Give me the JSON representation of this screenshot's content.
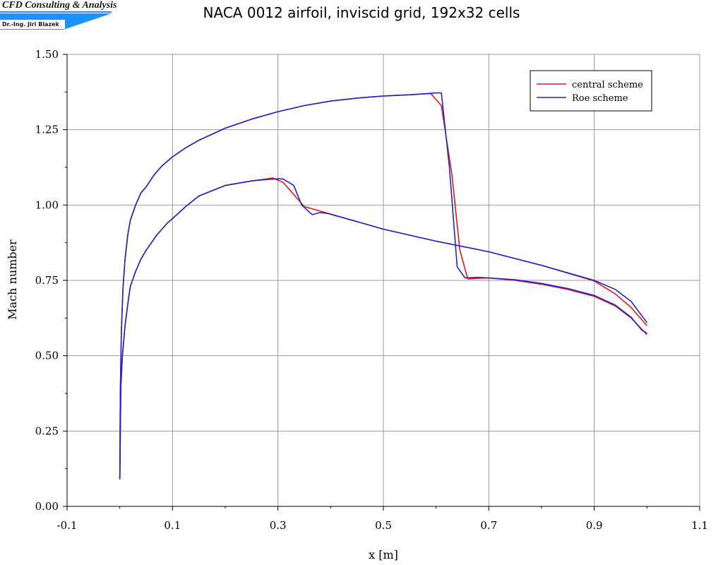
{
  "logo": {
    "line1": "CFD Consulting & Analysis",
    "line2": "Dr.-Ing. Jiri Blazek",
    "accent_color": "#1e90ff"
  },
  "chart_data": {
    "type": "line",
    "title": "NACA 0012 airfoil, inviscid grid, 192x32 cells",
    "xlabel": "x [m]",
    "ylabel": "Mach number",
    "xlim": [
      -0.1,
      1.1
    ],
    "ylim": [
      0.0,
      1.5
    ],
    "xticks": [
      -0.1,
      0.1,
      0.3,
      0.5,
      0.7,
      0.9,
      1.1
    ],
    "xtick_labels": [
      "-0.1",
      "0.1",
      "0.3",
      "0.5",
      "0.7",
      "0.9",
      "1.1"
    ],
    "yticks": [
      0.0,
      0.25,
      0.5,
      0.75,
      1.0,
      1.25,
      1.5
    ],
    "ytick_labels": [
      "0.00",
      "0.25",
      "0.50",
      "0.75",
      "1.00",
      "1.25",
      "1.50"
    ],
    "grid": true,
    "legend_position": "top-right",
    "series": [
      {
        "name": "central scheme",
        "color": "#e8141c",
        "segments": [
          {
            "x": [
              0.0,
              0.001,
              0.003,
              0.006,
              0.01,
              0.015,
              0.02,
              0.03,
              0.04,
              0.05,
              0.065,
              0.08,
              0.1,
              0.125,
              0.15,
              0.2,
              0.25,
              0.3,
              0.35,
              0.4,
              0.45,
              0.5,
              0.55,
              0.59,
              0.61,
              0.63,
              0.645,
              0.66
            ],
            "y": [
              0.09,
              0.38,
              0.58,
              0.72,
              0.82,
              0.9,
              0.95,
              1.0,
              1.04,
              1.06,
              1.1,
              1.13,
              1.16,
              1.19,
              1.215,
              1.255,
              1.285,
              1.31,
              1.33,
              1.345,
              1.355,
              1.362,
              1.366,
              1.37,
              1.33,
              1.1,
              0.85,
              0.755
            ]
          },
          {
            "x": [
              0.66,
              0.68,
              0.7,
              0.75,
              0.8,
              0.85,
              0.9,
              0.94,
              0.97,
              0.99,
              1.0
            ],
            "y": [
              0.755,
              0.757,
              0.758,
              0.75,
              0.737,
              0.72,
              0.697,
              0.665,
              0.625,
              0.588,
              0.57
            ]
          },
          {
            "x": [
              0.0,
              0.002,
              0.005,
              0.01,
              0.015,
              0.02,
              0.03,
              0.04,
              0.05,
              0.07,
              0.09,
              0.1,
              0.125,
              0.15,
              0.2,
              0.25,
              0.28,
              0.29,
              0.31,
              0.35,
              0.38,
              0.4,
              0.45,
              0.5,
              0.6,
              0.7,
              0.8,
              0.9,
              0.94,
              0.97,
              1.0
            ],
            "y": [
              0.09,
              0.4,
              0.5,
              0.6,
              0.67,
              0.73,
              0.78,
              0.82,
              0.85,
              0.9,
              0.94,
              0.955,
              0.995,
              1.03,
              1.065,
              1.08,
              1.087,
              1.09,
              1.075,
              0.995,
              0.98,
              0.97,
              0.945,
              0.92,
              0.88,
              0.845,
              0.8,
              0.748,
              0.705,
              0.66,
              0.6
            ]
          }
        ]
      },
      {
        "name": "Roe scheme",
        "color": "#2424cc",
        "segments": [
          {
            "x": [
              0.0,
              0.001,
              0.003,
              0.006,
              0.01,
              0.015,
              0.02,
              0.03,
              0.04,
              0.05,
              0.065,
              0.08,
              0.1,
              0.125,
              0.15,
              0.2,
              0.25,
              0.3,
              0.35,
              0.4,
              0.45,
              0.5,
              0.55,
              0.6,
              0.61,
              0.625,
              0.64,
              0.655
            ],
            "y": [
              0.09,
              0.38,
              0.58,
              0.72,
              0.82,
              0.9,
              0.95,
              1.0,
              1.04,
              1.06,
              1.1,
              1.13,
              1.16,
              1.19,
              1.215,
              1.255,
              1.285,
              1.31,
              1.33,
              1.345,
              1.355,
              1.362,
              1.366,
              1.372,
              1.372,
              1.13,
              0.795,
              0.758
            ]
          },
          {
            "x": [
              0.655,
              0.68,
              0.7,
              0.75,
              0.8,
              0.85,
              0.9,
              0.94,
              0.97,
              0.99,
              1.0
            ],
            "y": [
              0.758,
              0.76,
              0.758,
              0.752,
              0.74,
              0.723,
              0.7,
              0.668,
              0.628,
              0.585,
              0.575
            ]
          },
          {
            "x": [
              0.0,
              0.002,
              0.005,
              0.01,
              0.015,
              0.02,
              0.03,
              0.04,
              0.05,
              0.07,
              0.09,
              0.1,
              0.125,
              0.15,
              0.2,
              0.25,
              0.28,
              0.3,
              0.31,
              0.33,
              0.345,
              0.365,
              0.38,
              0.395,
              0.45,
              0.5,
              0.6,
              0.7,
              0.8,
              0.9,
              0.94,
              0.97,
              1.0
            ],
            "y": [
              0.09,
              0.4,
              0.5,
              0.6,
              0.67,
              0.73,
              0.78,
              0.82,
              0.85,
              0.9,
              0.94,
              0.955,
              0.995,
              1.03,
              1.065,
              1.08,
              1.085,
              1.087,
              1.086,
              1.065,
              1.0,
              0.968,
              0.975,
              0.972,
              0.945,
              0.92,
              0.88,
              0.845,
              0.8,
              0.75,
              0.72,
              0.68,
              0.61
            ]
          }
        ]
      }
    ]
  }
}
